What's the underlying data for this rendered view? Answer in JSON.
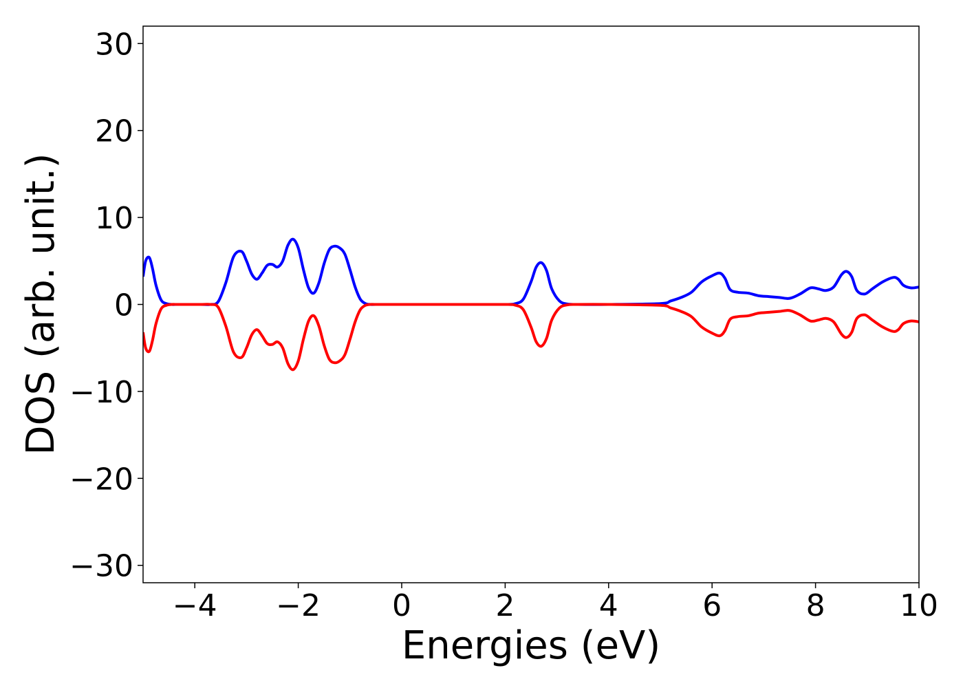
{
  "chart_data": {
    "type": "line",
    "title": "",
    "xlabel": "Energies (eV)",
    "ylabel": "DOS (arb. unit.)",
    "xlim": [
      -5,
      10
    ],
    "ylim": [
      -32,
      32
    ],
    "xticks": [
      -4,
      -2,
      0,
      2,
      4,
      6,
      8,
      10
    ],
    "xtick_labels": [
      "−4",
      "−2",
      "0",
      "2",
      "4",
      "6",
      "8",
      "10"
    ],
    "yticks": [
      -30,
      -20,
      -10,
      0,
      10,
      20,
      30
    ],
    "ytick_labels": [
      "−30",
      "−20",
      "−10",
      "0",
      "10",
      "20",
      "30"
    ],
    "grid": false,
    "legend": "none",
    "series": [
      {
        "color": "#0000ff",
        "x": [
          -5.0,
          -4.95,
          -4.88,
          -4.82,
          -4.75,
          -4.65,
          -4.55,
          -4.45,
          -4.3,
          -3.9,
          -3.7,
          -3.55,
          -3.4,
          -3.25,
          -3.1,
          -3.0,
          -2.9,
          -2.8,
          -2.7,
          -2.6,
          -2.5,
          -2.4,
          -2.3,
          -2.2,
          -2.1,
          -2.0,
          -1.9,
          -1.8,
          -1.7,
          -1.6,
          -1.5,
          -1.4,
          -1.3,
          -1.2,
          -1.1,
          -1.0,
          -0.9,
          -0.8,
          -0.7,
          -0.6,
          -0.5,
          0.0,
          1.0,
          2.0,
          2.2,
          2.35,
          2.5,
          2.6,
          2.7,
          2.8,
          2.9,
          3.05,
          3.2,
          3.4,
          4.0,
          5.0,
          5.2,
          5.4,
          5.6,
          5.8,
          6.0,
          6.15,
          6.25,
          6.35,
          6.5,
          6.7,
          6.9,
          7.1,
          7.3,
          7.5,
          7.7,
          7.9,
          8.05,
          8.2,
          8.35,
          8.5,
          8.6,
          8.7,
          8.8,
          8.95,
          9.1,
          9.3,
          9.5,
          9.6,
          9.7,
          9.85,
          10.0
        ],
        "y": [
          3.2,
          5.0,
          5.4,
          4.2,
          2.2,
          0.5,
          0.1,
          0.0,
          0.0,
          0.0,
          0.0,
          0.3,
          2.5,
          5.5,
          6.1,
          5.0,
          3.5,
          2.9,
          3.6,
          4.5,
          4.6,
          4.3,
          5.0,
          6.8,
          7.5,
          6.5,
          4.0,
          1.9,
          1.3,
          2.5,
          4.7,
          6.3,
          6.7,
          6.5,
          5.8,
          4.0,
          2.0,
          0.6,
          0.1,
          0.0,
          0.0,
          0.0,
          0.0,
          0.0,
          0.1,
          0.6,
          2.6,
          4.3,
          4.8,
          3.9,
          1.8,
          0.4,
          0.05,
          0.0,
          0.0,
          0.1,
          0.4,
          0.8,
          1.4,
          2.6,
          3.3,
          3.6,
          3.0,
          1.7,
          1.4,
          1.3,
          1.0,
          0.9,
          0.8,
          0.7,
          1.2,
          1.9,
          1.8,
          1.6,
          2.0,
          3.4,
          3.8,
          3.2,
          1.6,
          1.2,
          1.8,
          2.6,
          3.1,
          2.9,
          2.2,
          1.9,
          2.0
        ]
      },
      {
        "color": "#ff0000",
        "x": [
          -5.0,
          -4.95,
          -4.88,
          -4.82,
          -4.75,
          -4.65,
          -4.55,
          -4.45,
          -4.3,
          -3.9,
          -3.7,
          -3.55,
          -3.4,
          -3.25,
          -3.1,
          -3.0,
          -2.9,
          -2.8,
          -2.7,
          -2.6,
          -2.5,
          -2.4,
          -2.3,
          -2.2,
          -2.1,
          -2.0,
          -1.9,
          -1.8,
          -1.7,
          -1.6,
          -1.5,
          -1.4,
          -1.3,
          -1.2,
          -1.1,
          -1.0,
          -0.9,
          -0.8,
          -0.7,
          -0.6,
          -0.5,
          0.0,
          1.0,
          2.0,
          2.2,
          2.35,
          2.5,
          2.6,
          2.7,
          2.8,
          2.9,
          3.05,
          3.2,
          3.4,
          4.0,
          5.0,
          5.2,
          5.4,
          5.6,
          5.8,
          6.0,
          6.15,
          6.25,
          6.35,
          6.5,
          6.7,
          6.9,
          7.1,
          7.3,
          7.5,
          7.7,
          7.9,
          8.05,
          8.2,
          8.35,
          8.5,
          8.6,
          8.7,
          8.8,
          8.95,
          9.1,
          9.3,
          9.5,
          9.6,
          9.7,
          9.85,
          10.0
        ],
        "y": [
          -3.2,
          -5.0,
          -5.4,
          -4.2,
          -2.2,
          -0.5,
          -0.1,
          0.0,
          0.0,
          0.0,
          0.0,
          -0.3,
          -2.5,
          -5.5,
          -6.1,
          -5.0,
          -3.5,
          -2.9,
          -3.6,
          -4.5,
          -4.6,
          -4.3,
          -5.0,
          -6.8,
          -7.5,
          -6.5,
          -4.0,
          -1.9,
          -1.3,
          -2.5,
          -4.7,
          -6.3,
          -6.7,
          -6.5,
          -5.8,
          -4.0,
          -2.0,
          -0.6,
          -0.1,
          0.0,
          0.0,
          0.0,
          0.0,
          0.0,
          -0.1,
          -0.6,
          -2.6,
          -4.3,
          -4.8,
          -3.9,
          -1.8,
          -0.4,
          -0.05,
          0.0,
          0.0,
          -0.1,
          -0.4,
          -0.8,
          -1.4,
          -2.6,
          -3.3,
          -3.6,
          -3.0,
          -1.7,
          -1.4,
          -1.3,
          -1.0,
          -0.9,
          -0.8,
          -0.7,
          -1.2,
          -1.9,
          -1.8,
          -1.6,
          -2.0,
          -3.4,
          -3.8,
          -3.2,
          -1.6,
          -1.2,
          -1.8,
          -2.6,
          -3.1,
          -2.9,
          -2.2,
          -1.9,
          -2.0
        ]
      }
    ]
  }
}
